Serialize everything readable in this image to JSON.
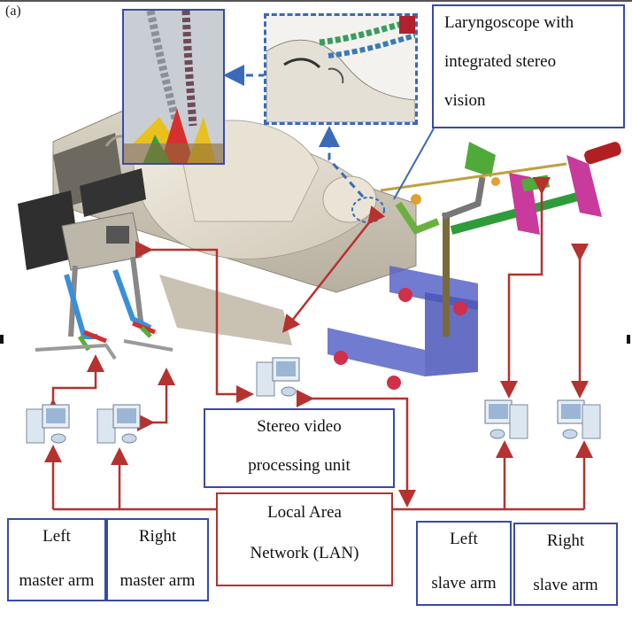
{
  "panel_label": "(a)",
  "callout": {
    "line1": "Laryngoscope with",
    "line2": "integrated stereo",
    "line3": "vision"
  },
  "video_unit": {
    "line1": "Stereo video",
    "line2": "processing unit"
  },
  "lan": {
    "line1": "Local Area",
    "line2": "Network (LAN)"
  },
  "arms": {
    "left_master": {
      "line1": "Left",
      "line2": "master arm"
    },
    "right_master": {
      "line1": "Right",
      "line2": "master arm"
    },
    "left_slave": {
      "line1": "Left",
      "line2": "slave arm"
    },
    "right_slave": {
      "line1": "Right",
      "line2": "slave arm"
    }
  },
  "colors": {
    "box_border_blue": "#3a4aa8",
    "lan_border_red": "#b5322f",
    "arrow_red": "#b5322f",
    "dashed_blue": "#3a6ab8"
  },
  "icons": [
    "computer-icon"
  ]
}
